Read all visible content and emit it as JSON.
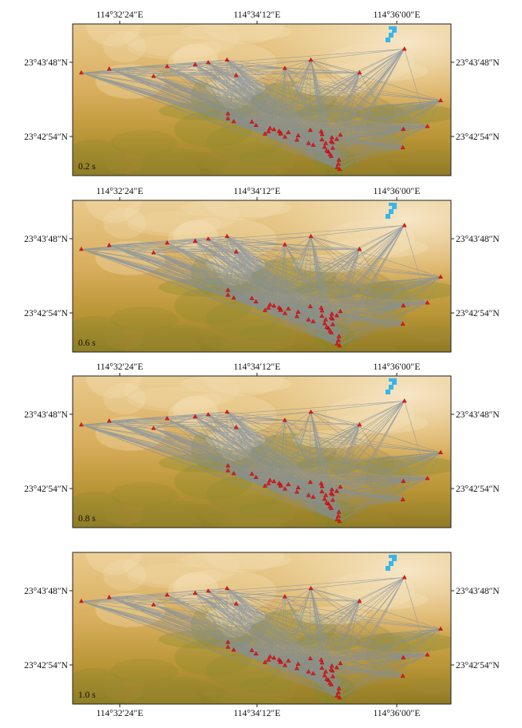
{
  "lon_labels": [
    "114°32′24″E",
    "114°34′12″E",
    "114°36′00″E"
  ],
  "lat_labels": [
    "23°43′48″N",
    "23°42′54″N"
  ],
  "colors": {
    "ray": "#7f8fa0",
    "station": "#e31a1c",
    "water": "#35b6ee",
    "frame": "#222222"
  },
  "panels": [
    {
      "time_label": "0.2 s",
      "lon_axis_position": "top",
      "ray_density": 1.0
    },
    {
      "time_label": "0.6 s",
      "lon_axis_position": "top",
      "ray_density": 0.92
    },
    {
      "time_label": "0.8 s",
      "lon_axis_position": "top",
      "ray_density": 0.82
    },
    {
      "time_label": "1.0 s",
      "lon_axis_position": "bottom",
      "ray_density": 0.7
    }
  ],
  "stations": [
    [
      114.5195,
      23.7302
    ],
    [
      114.5349,
      23.7331
    ],
    [
      114.5594,
      23.7276
    ],
    [
      114.5669,
      23.7349
    ],
    [
      114.5824,
      23.7363
    ],
    [
      114.5896,
      23.7378
    ],
    [
      114.6,
      23.7398
    ],
    [
      114.605,
      23.7283
    ],
    [
      114.6319,
      23.7336
    ],
    [
      114.6463,
      23.7397
    ],
    [
      114.6732,
      23.7302
    ],
    [
      114.698,
      23.7479
    ],
    [
      114.718,
      23.7096
    ],
    [
      114.7107,
      23.6904
    ],
    [
      114.6974,
      23.6883
    ],
    [
      114.6971,
      23.6747
    ],
    [
      114.6005,
      23.6962
    ],
    [
      114.6005,
      23.6998
    ],
    [
      114.6037,
      23.694
    ],
    [
      114.6137,
      23.6937
    ],
    [
      114.616,
      23.6912
    ],
    [
      114.6237,
      23.689
    ],
    [
      114.6259,
      23.6881
    ],
    [
      114.6287,
      23.6867
    ],
    [
      114.6296,
      23.6856
    ],
    [
      114.6339,
      23.6859
    ],
    [
      114.6386,
      23.6803
    ],
    [
      114.645,
      23.6778
    ],
    [
      114.6476,
      23.6765
    ],
    [
      114.6524,
      23.6806
    ],
    [
      114.6539,
      23.675
    ],
    [
      114.656,
      23.6715
    ],
    [
      114.6569,
      23.6695
    ],
    [
      114.6576,
      23.6682
    ],
    [
      114.6551,
      23.6723
    ],
    [
      114.6584,
      23.6743
    ],
    [
      114.6582,
      23.6785
    ],
    [
      114.6606,
      23.6809
    ],
    [
      114.6618,
      23.6654
    ],
    [
      114.6615,
      23.6624
    ],
    [
      114.6608,
      23.6599
    ],
    [
      114.6622,
      23.6585
    ],
    [
      114.6545,
      23.6778
    ],
    [
      114.6575,
      23.6793
    ],
    [
      114.6626,
      23.684
    ],
    [
      114.6579,
      23.6821
    ],
    [
      114.6525,
      23.6845
    ],
    [
      114.652,
      23.6866
    ],
    [
      114.646,
      23.6876
    ],
    [
      114.6393,
      23.6835
    ],
    [
      114.632,
      23.6826
    ],
    [
      114.6296,
      23.6848
    ],
    [
      114.6229,
      23.6866
    ],
    [
      114.621,
      23.6848
    ]
  ]
}
